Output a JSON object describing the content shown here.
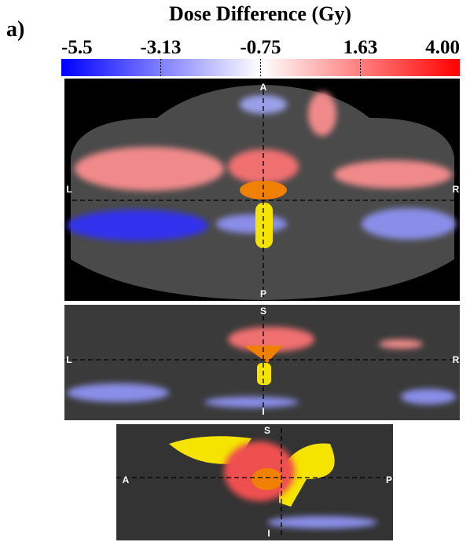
{
  "chart_data": {
    "type": "colorbar",
    "panel_label": "a)",
    "title": "Dose Difference (Gy)",
    "clim": [
      -5.5,
      4
    ],
    "colors": [
      "#0000ff",
      "#ffffff",
      "#ff0000"
    ],
    "ticks": [
      -5.5,
      -3.13,
      -0.75,
      1.63,
      {
        "value": 4,
        "label": "4.00"
      }
    ]
  },
  "images": [
    {
      "labels": [
        "A",
        "L",
        "R",
        "P"
      ]
    },
    {
      "labels": [
        "S",
        "L",
        "R",
        "I"
      ]
    },
    {
      "labels": [
        "S",
        "A",
        "P",
        "I"
      ]
    }
  ]
}
